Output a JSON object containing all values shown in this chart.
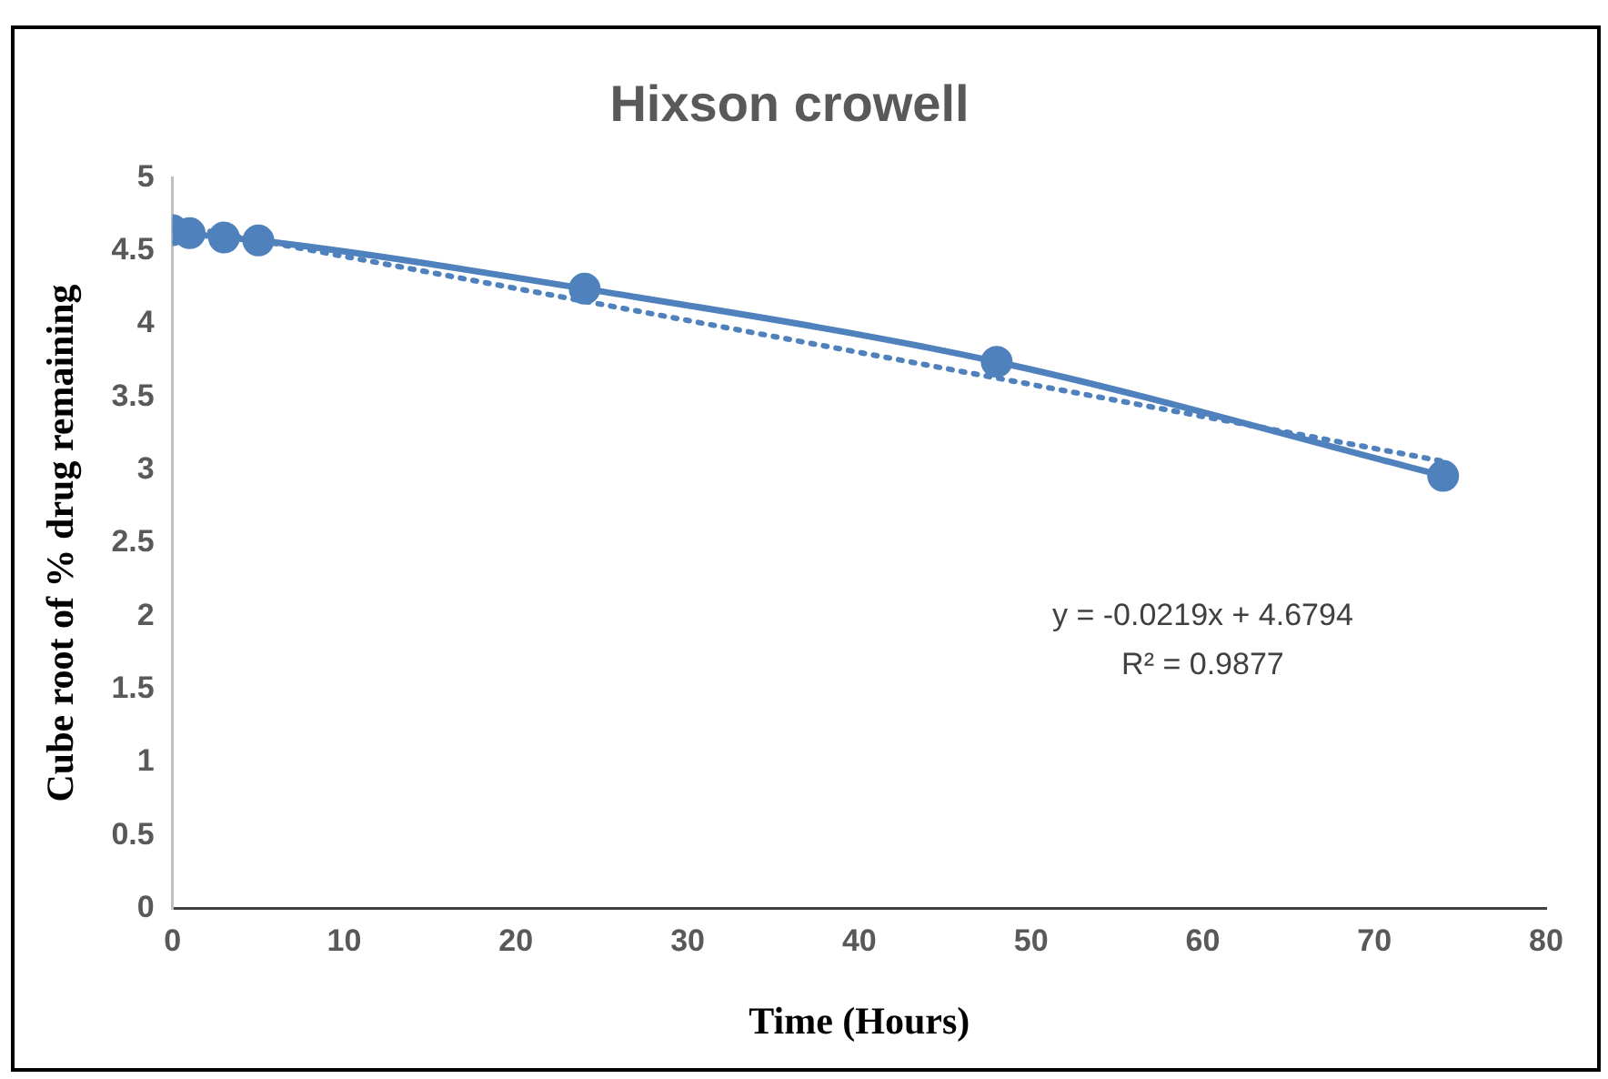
{
  "chart_data": {
    "type": "line",
    "title": "Hixson crowell",
    "xlabel": "Time (Hours)",
    "ylabel": "Cube root of % drug remaining",
    "x": [
      0,
      1,
      3,
      5,
      24,
      48,
      74
    ],
    "series": [
      {
        "color": "#4f81bd",
        "values": [
          4.64,
          4.62,
          4.59,
          4.57,
          4.24,
          3.74,
          2.96
        ],
        "marker": "circle",
        "line_style": "solid"
      },
      {
        "color": "#4f81bd",
        "x": [
          0,
          74
        ],
        "values": [
          4.68,
          3.06
        ],
        "marker": "none",
        "line_style": "dotted"
      }
    ],
    "xlim": [
      0,
      80
    ],
    "xticks": [
      0,
      10,
      20,
      30,
      40,
      50,
      60,
      70,
      80
    ],
    "ylim": [
      0,
      5
    ],
    "yticks": [
      0,
      0.5,
      1,
      1.5,
      2,
      2.5,
      3,
      3.5,
      4,
      4.5,
      5
    ],
    "grid": false,
    "legend": false,
    "annotations": [
      "y = -0.0219x + 4.6794",
      "R² = 0.9877"
    ]
  }
}
